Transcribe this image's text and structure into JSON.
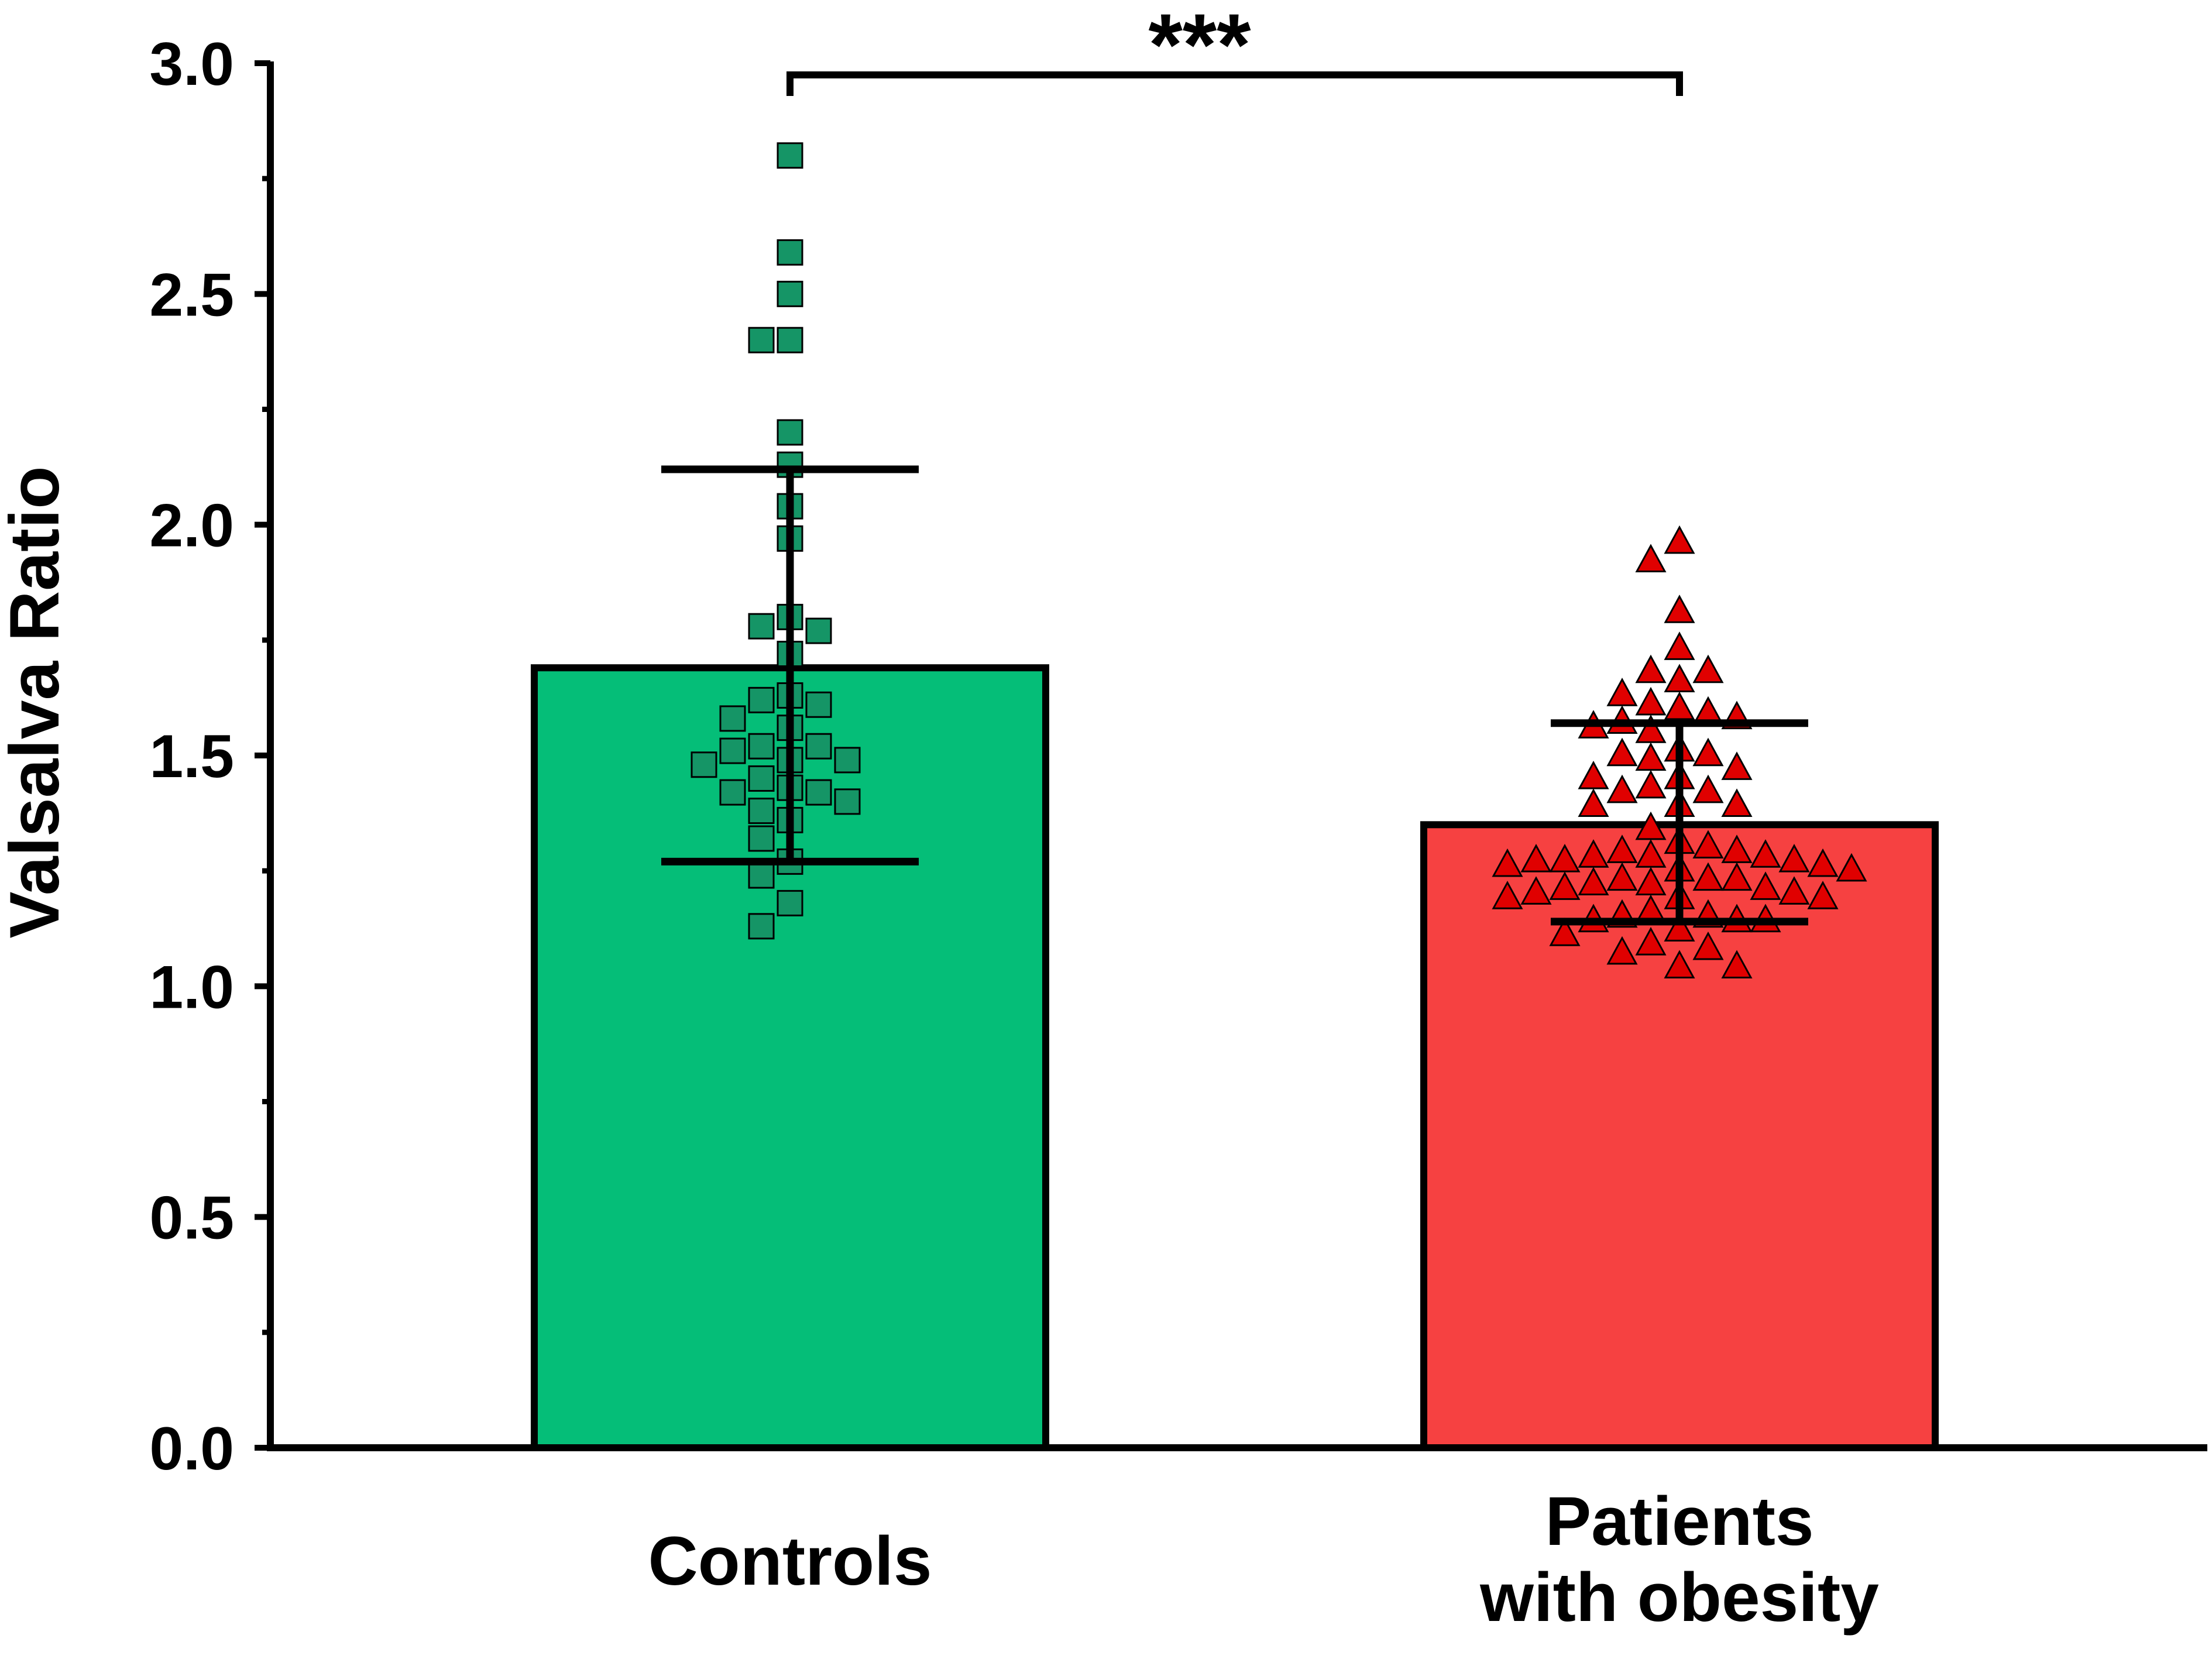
{
  "chart_data": {
    "type": "bar",
    "title": "",
    "xlabel": "",
    "ylabel": "Valsalva Ratio",
    "ylim": [
      0,
      3.0
    ],
    "yticks": [
      "0.0",
      "0.5",
      "1.0",
      "1.5",
      "2.0",
      "2.5",
      "3.0"
    ],
    "grid": false,
    "categories": [
      {
        "lines": [
          "Controls"
        ]
      },
      {
        "lines": [
          "Patients",
          "with obesity"
        ]
      }
    ],
    "series": [
      {
        "name": "Controls",
        "mean": 1.69,
        "sd_low": 1.27,
        "sd_high": 2.12,
        "bar_color": "#05BE78",
        "marker": "square",
        "marker_color": "#159566",
        "points": [
          2.8,
          2.59,
          2.5,
          2.4,
          2.4,
          2.2,
          2.13,
          2.04,
          1.97,
          1.8,
          1.78,
          1.77,
          1.72,
          1.63,
          1.62,
          1.61,
          1.58,
          1.56,
          1.52,
          1.52,
          1.51,
          1.49,
          1.49,
          1.48,
          1.45,
          1.43,
          1.42,
          1.42,
          1.4,
          1.38,
          1.36,
          1.32,
          1.27,
          1.24,
          1.18,
          1.13
        ]
      },
      {
        "name": "Patients with obesity",
        "mean": 1.35,
        "sd_low": 1.14,
        "sd_high": 1.57,
        "bar_color": "#F64141",
        "marker": "triangle",
        "marker_color": "#E00000",
        "points": [
          1.96,
          1.92,
          1.81,
          1.73,
          1.68,
          1.68,
          1.66,
          1.63,
          1.61,
          1.6,
          1.59,
          1.58,
          1.57,
          1.56,
          1.55,
          1.51,
          1.5,
          1.5,
          1.49,
          1.47,
          1.45,
          1.45,
          1.43,
          1.42,
          1.42,
          1.39,
          1.39,
          1.39,
          1.34,
          1.31,
          1.3,
          1.29,
          1.29,
          1.28,
          1.28,
          1.28,
          1.27,
          1.27,
          1.27,
          1.26,
          1.26,
          1.25,
          1.25,
          1.23,
          1.23,
          1.23,
          1.22,
          1.22,
          1.21,
          1.21,
          1.2,
          1.2,
          1.19,
          1.19,
          1.19,
          1.16,
          1.15,
          1.15,
          1.14,
          1.14,
          1.14,
          1.12,
          1.11,
          1.09,
          1.08,
          1.07,
          1.04,
          1.04
        ]
      }
    ],
    "significance": {
      "label": "***",
      "between": [
        0,
        1
      ]
    }
  }
}
